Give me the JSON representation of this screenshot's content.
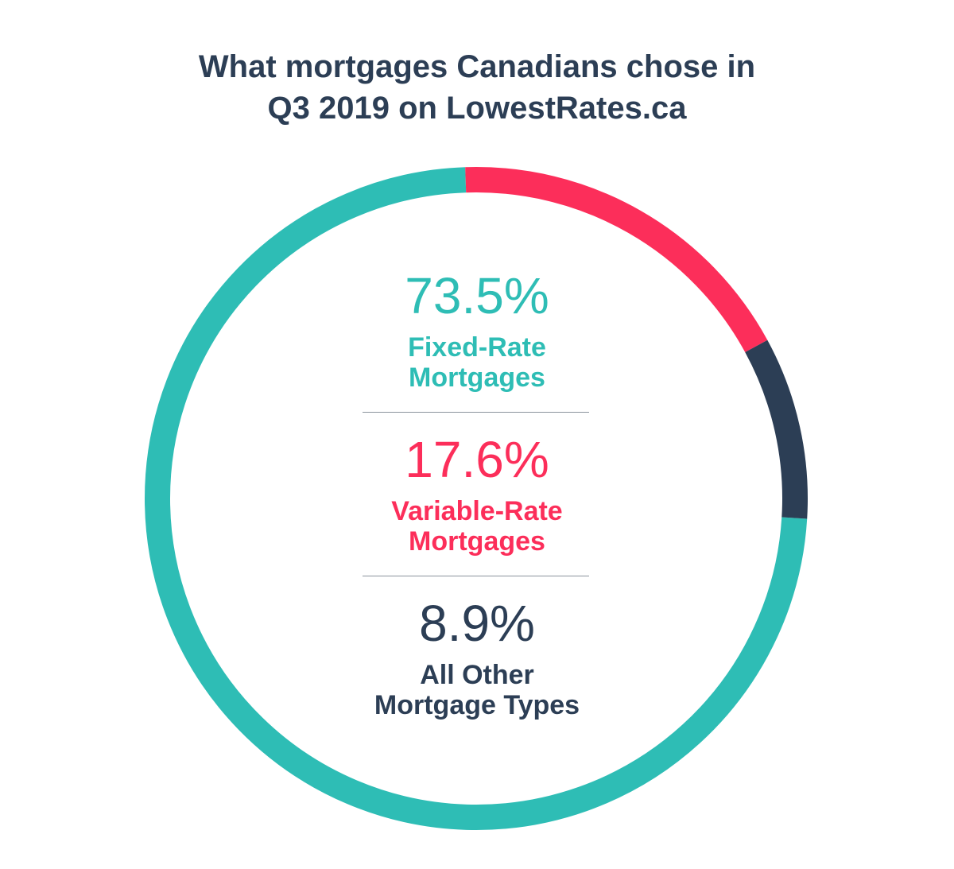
{
  "chart_data": {
    "type": "donut",
    "title": "What mortgages Canadians chose in Q3 2019 on LowestRates.ca",
    "categories": [
      "Fixed-Rate Mortgages",
      "Variable-Rate Mortgages",
      "All Other Mortgage Types"
    ],
    "values": [
      73.5,
      17.6,
      8.9
    ],
    "value_labels": [
      "73.5%",
      "17.6%",
      "8.9%"
    ],
    "colors": [
      "#2ebdb5",
      "#fc2e5a",
      "#2c3e55"
    ]
  }
}
